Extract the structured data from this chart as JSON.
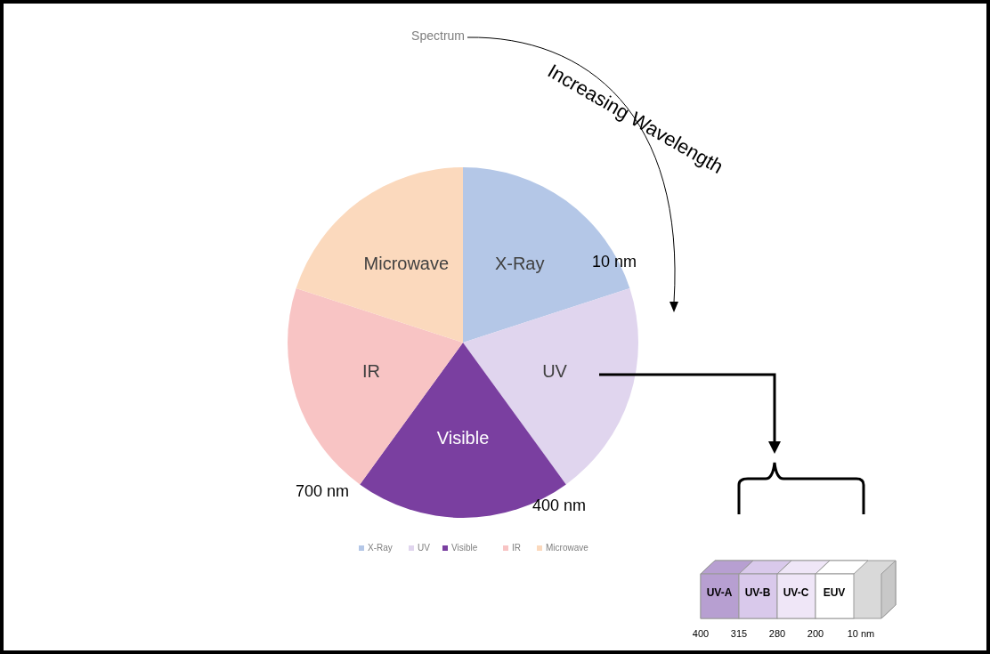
{
  "chart_data": {
    "type": "pie",
    "title": "Spectrum",
    "categories": [
      "X-Ray",
      "UV",
      "Visible",
      "IR",
      "Microwave"
    ],
    "values": [
      20,
      20,
      20,
      20,
      20
    ],
    "colors": [
      "#b4c7e7",
      "#e0d5ee",
      "#7a3fa0",
      "#f8c4c4",
      "#fbd9bd"
    ],
    "legend": "bottom",
    "annotations": [
      "Increasing Wavelength",
      "10 nm",
      "400 nm",
      "700 nm",
      "UV-A",
      "UV-B",
      "UV-C",
      "EUV",
      "400",
      "315",
      "280",
      "200",
      "10 nm"
    ]
  }
}
